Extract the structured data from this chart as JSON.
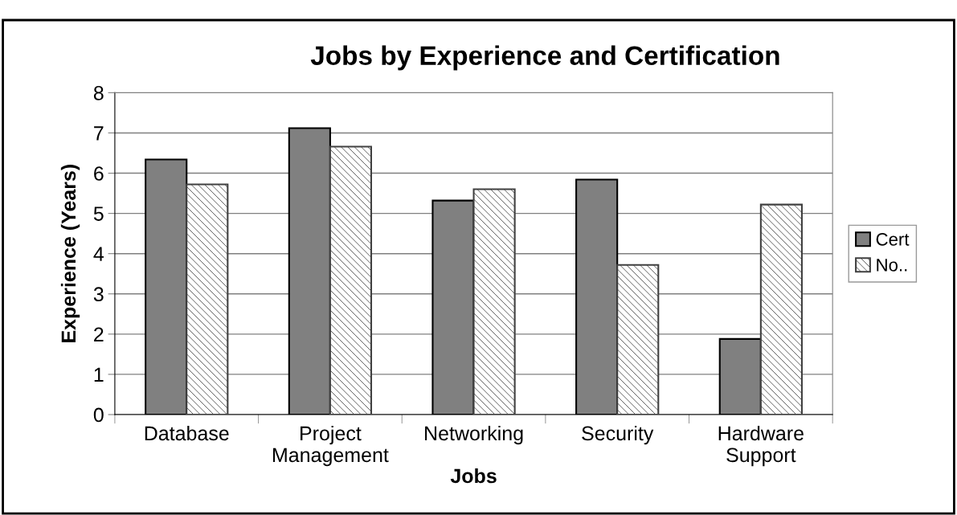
{
  "chart_data": {
    "type": "bar",
    "title": "Jobs by Experience and Certification",
    "xlabel": "Jobs",
    "ylabel": "Experience (Years)",
    "categories": [
      "Database",
      "Project\nManagement",
      "Networking",
      "Security",
      "Hardware\nSupport"
    ],
    "series": [
      {
        "name": "Cert",
        "color": "#808080",
        "values": [
          6.34,
          7.12,
          5.32,
          5.84,
          1.88
        ]
      },
      {
        "name": "No..",
        "color": "#404040",
        "values": [
          5.72,
          6.66,
          5.6,
          3.72,
          5.22
        ]
      }
    ],
    "ylim": [
      0,
      8
    ],
    "yticks": [
      0,
      1,
      2,
      3,
      4,
      5,
      6,
      7,
      8
    ],
    "grid": "y",
    "legend": "right"
  }
}
